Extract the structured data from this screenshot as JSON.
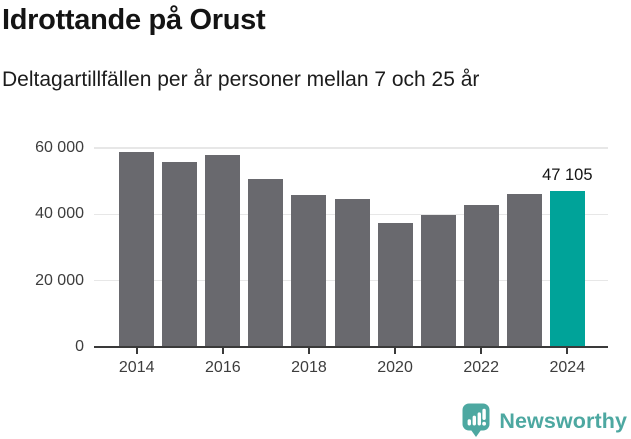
{
  "header": {
    "title": "Idrottande på Orust",
    "subtitle": "Deltagartillfällen per år personer mellan 7 och 25 år"
  },
  "chart_data": {
    "type": "bar",
    "title": "Idrottande på Orust",
    "subtitle": "Deltagartillfällen per år personer mellan 7 och 25 år",
    "categories": [
      "2014",
      "2015",
      "2016",
      "2017",
      "2018",
      "2019",
      "2020",
      "2021",
      "2022",
      "2023",
      "2024"
    ],
    "values": [
      58800,
      55800,
      58000,
      50800,
      45700,
      44500,
      37400,
      39700,
      42700,
      46200,
      47105
    ],
    "ylim": [
      0,
      60000
    ],
    "y_ticks": [
      {
        "value": 0,
        "label": "0"
      },
      {
        "value": 20000,
        "label": "20 000"
      },
      {
        "value": 40000,
        "label": "40 000"
      },
      {
        "value": 60000,
        "label": "60 000"
      }
    ],
    "x_tick_labels": [
      "2014",
      "2016",
      "2018",
      "2020",
      "2022",
      "2024"
    ],
    "highlight": {
      "category": "2024",
      "value": 47105,
      "label": "47 105",
      "color": "#00a399"
    },
    "bar_color": "#69696e",
    "gridline_color": "#e7e7e7",
    "axis_color": "#3a3a3a",
    "tick_label_color": "#3d3d3d",
    "grid": true,
    "legend": "none"
  },
  "footer": {
    "brand": "Newsworthy",
    "brand_color": "#4da8a1"
  }
}
